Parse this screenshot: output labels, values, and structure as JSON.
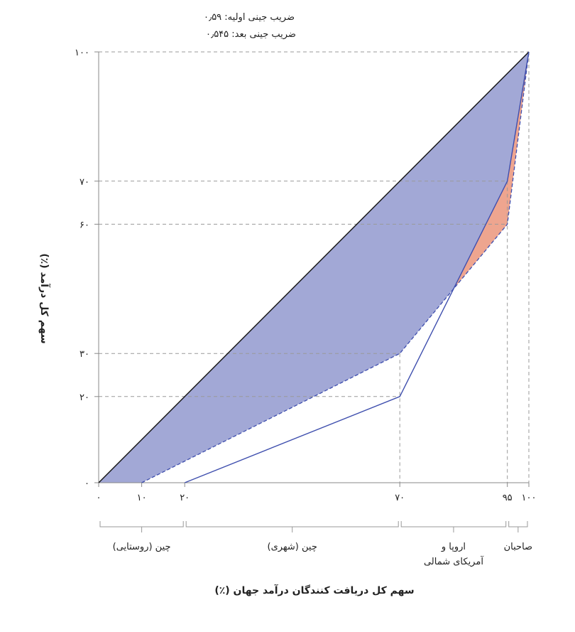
{
  "chart_data": {
    "type": "area",
    "title": "",
    "annotations": [
      "ضریب جینی اولیه: ۰٫۵۹",
      "ضریب جینی بعد: ۰٫۵۴۵"
    ],
    "xlabel": "سهم کل دریافت کنندگان درآمد جهان (٪)",
    "ylabel": "سهم کل درآمد (٪)",
    "xlim": [
      0,
      100
    ],
    "ylim": [
      0,
      100
    ],
    "x_ticks": [
      {
        "value": 0,
        "label": "۰"
      },
      {
        "value": 10,
        "label": "۱۰"
      },
      {
        "value": 20,
        "label": "۲۰"
      },
      {
        "value": 70,
        "label": "۷۰"
      },
      {
        "value": 95,
        "label": "۹۵"
      },
      {
        "value": 100,
        "label": "۱۰۰"
      }
    ],
    "y_ticks": [
      {
        "value": 0,
        "label": "۰"
      },
      {
        "value": 20,
        "label": "۲۰"
      },
      {
        "value": 30,
        "label": "۳۰"
      },
      {
        "value": 60,
        "label": "۶۰"
      },
      {
        "value": 70,
        "label": "۷۰"
      },
      {
        "value": 100,
        "label": "۱۰۰"
      }
    ],
    "series": [
      {
        "x": [
          0,
          100
        ],
        "y": [
          0,
          100
        ],
        "style": "solid",
        "color": "#111111"
      },
      {
        "x": [
          20,
          70,
          95,
          100
        ],
        "y": [
          0,
          20,
          70,
          100
        ],
        "style": "solid",
        "color": "#3f4fae"
      },
      {
        "x": [
          10,
          70,
          95,
          100
        ],
        "y": [
          0,
          30,
          60,
          100
        ],
        "style": "dashed",
        "color": "#3f4fae"
      }
    ],
    "fills": [
      {
        "between": "equality-and-dashed",
        "color": "#a2a8d6"
      },
      {
        "between": "solid-and-dashed-where-dashed-below",
        "color": "#eea58f"
      }
    ],
    "groups": [
      {
        "x_from": 0,
        "x_to": 20,
        "label": "چین (روستایی)"
      },
      {
        "x_from": 20,
        "x_to": 70,
        "label": "چین (شهری)"
      },
      {
        "x_from": 70,
        "x_to": 95,
        "label": [
          "اروپا و",
          "آمریکای شمالی"
        ]
      },
      {
        "x_from": 95,
        "x_to": 100,
        "label": "صاحبان"
      }
    ],
    "grid": "dashed reference lines at tick values",
    "legend": "none"
  }
}
